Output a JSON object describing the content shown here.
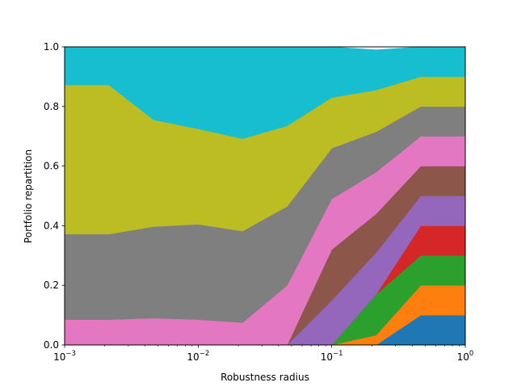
{
  "chart_data": {
    "type": "area",
    "stacked": true,
    "x_scale": "log",
    "title": "",
    "xlabel": "Robustness radius",
    "ylabel": "Portfolio repartition",
    "xlim": [
      0.001,
      1
    ],
    "ylim": [
      0,
      1
    ],
    "grid": false,
    "legend": "none",
    "x_ticks": [
      {
        "value": 0.001,
        "base": "10",
        "exp": "−3"
      },
      {
        "value": 0.01,
        "base": "10",
        "exp": "−2"
      },
      {
        "value": 0.1,
        "base": "10",
        "exp": "−1"
      },
      {
        "value": 1,
        "base": "10",
        "exp": "0"
      }
    ],
    "y_ticks": [
      {
        "value": 0,
        "label": "0.0"
      },
      {
        "value": 0.2,
        "label": "0.2"
      },
      {
        "value": 0.4,
        "label": "0.4"
      },
      {
        "value": 0.6,
        "label": "0.6"
      },
      {
        "value": 0.8,
        "label": "0.8"
      },
      {
        "value": 1,
        "label": "1.0"
      }
    ],
    "x": [
      0.001,
      0.00215,
      0.00464,
      0.01,
      0.0215,
      0.0464,
      0.1,
      0.215,
      0.464,
      1
    ],
    "series": [
      {
        "color": "#1f77b4",
        "values": [
          0,
          0,
          0,
          0,
          0,
          0,
          0,
          0,
          0.1,
          0.1
        ]
      },
      {
        "color": "#ff7f0e",
        "values": [
          0,
          0,
          0,
          0,
          0,
          0,
          0,
          0.033,
          0.1,
          0.1
        ]
      },
      {
        "color": "#2ca02c",
        "values": [
          0,
          0,
          0,
          0,
          0,
          0,
          0,
          0.137,
          0.1,
          0.1
        ]
      },
      {
        "color": "#d62728",
        "values": [
          0,
          0,
          0,
          0,
          0,
          0,
          0,
          0,
          0.1,
          0.1
        ]
      },
      {
        "color": "#9467bd",
        "values": [
          0,
          0,
          0,
          0,
          0,
          0,
          0.15,
          0.14,
          0.1,
          0.1
        ]
      },
      {
        "color": "#8c564b",
        "values": [
          0,
          0,
          0,
          0,
          0,
          0,
          0.17,
          0.13,
          0.1,
          0.1
        ]
      },
      {
        "color": "#e377c2",
        "values": [
          0.085,
          0.085,
          0.09,
          0.085,
          0.075,
          0.2,
          0.17,
          0.14,
          0.1,
          0.1
        ]
      },
      {
        "color": "#7f7f7f",
        "values": [
          0.287,
          0.287,
          0.307,
          0.32,
          0.307,
          0.265,
          0.17,
          0.135,
          0.1,
          0.1
        ]
      },
      {
        "color": "#bcbd22",
        "values": [
          0.5,
          0.5,
          0.358,
          0.32,
          0.31,
          0.27,
          0.17,
          0.14,
          0.1,
          0.1
        ]
      },
      {
        "color": "#17becf",
        "values": [
          0.128,
          0.128,
          0.245,
          0.275,
          0.308,
          0.265,
          0.17,
          0.135,
          0.1,
          0.1
        ]
      }
    ]
  }
}
